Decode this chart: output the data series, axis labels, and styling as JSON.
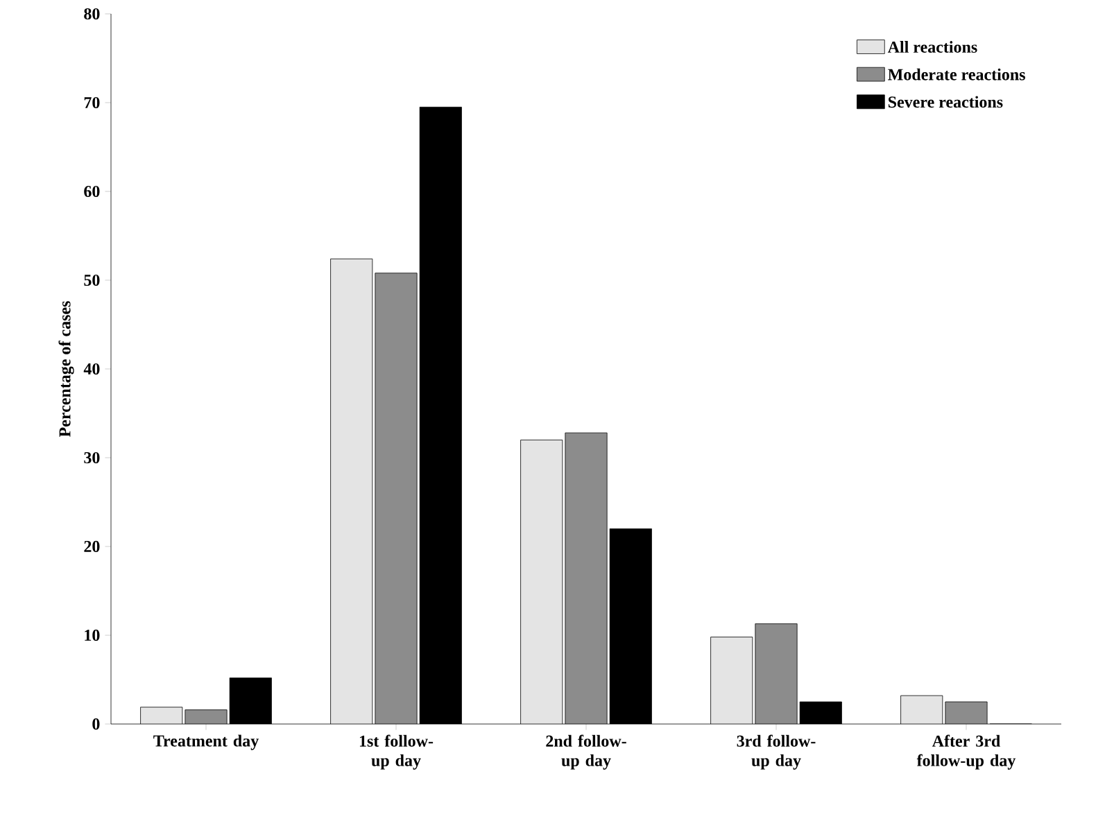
{
  "chart_data": {
    "type": "bar",
    "ylabel": "Percentage of cases",
    "categories": [
      "Treatment day",
      "1st follow-up day",
      "2nd follow-up day",
      "3rd follow-up day",
      "After 3rd follow-up day"
    ],
    "series": [
      {
        "name": "All reactions",
        "color": "#e4e4e4",
        "values": [
          1.9,
          52.4,
          32.0,
          9.8,
          3.2
        ]
      },
      {
        "name": "Moderate reactions",
        "color": "#8c8c8c",
        "values": [
          1.6,
          50.8,
          32.8,
          11.3,
          2.5
        ]
      },
      {
        "name": "Severe reactions",
        "color": "#000000",
        "values": [
          5.2,
          69.5,
          22.0,
          2.5,
          0
        ]
      }
    ],
    "ylim": [
      0,
      80
    ],
    "yticks": [
      0,
      10,
      20,
      30,
      40,
      50,
      60,
      70,
      80
    ],
    "grid": false,
    "legend": "top right"
  }
}
